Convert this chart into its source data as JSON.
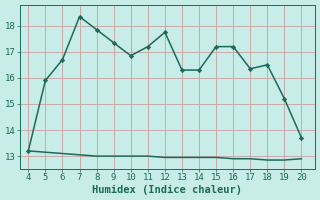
{
  "x": [
    4,
    5,
    6,
    7,
    8,
    9,
    10,
    11,
    12,
    13,
    14,
    15,
    16,
    17,
    18,
    19,
    20
  ],
  "y_upper": [
    13.2,
    15.9,
    16.7,
    18.35,
    17.85,
    17.35,
    16.85,
    17.2,
    17.75,
    16.3,
    16.3,
    17.2,
    17.2,
    16.35,
    16.5,
    15.2,
    13.7
  ],
  "y_lower": [
    13.2,
    13.15,
    13.1,
    13.05,
    13.0,
    13.0,
    13.0,
    13.0,
    12.95,
    12.95,
    12.95,
    12.95,
    12.9,
    12.9,
    12.85,
    12.85,
    12.9
  ],
  "line_color": "#1a6b5a",
  "bg_color": "#c8ece8",
  "grid_color_major": "#c8a0a0",
  "xlabel": "Humidex (Indice chaleur)",
  "xlim": [
    3.5,
    20.8
  ],
  "ylim": [
    12.5,
    18.8
  ],
  "xticks": [
    4,
    5,
    6,
    7,
    8,
    9,
    10,
    11,
    12,
    13,
    14,
    15,
    16,
    17,
    18,
    19,
    20
  ],
  "yticks": [
    13,
    14,
    15,
    16,
    17,
    18
  ],
  "xlabel_fontsize": 7.5,
  "tick_fontsize": 6.5,
  "line_width": 1.1,
  "marker_size": 2.2
}
